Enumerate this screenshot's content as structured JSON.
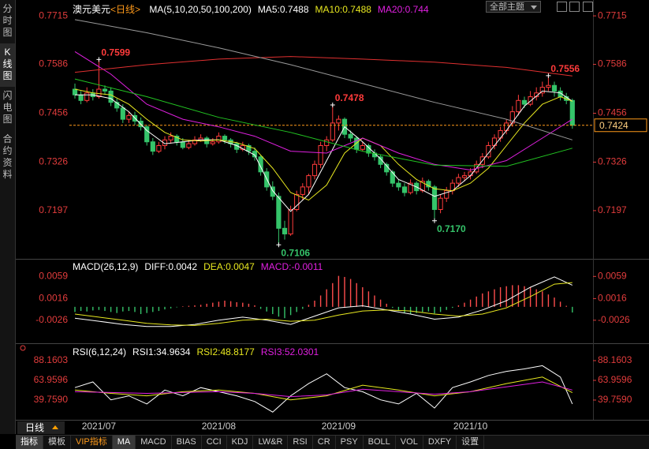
{
  "header": {
    "symbol": "澳元美元",
    "period": "<日线>",
    "theme": "全部主题"
  },
  "sidebar": [
    "分时图",
    "K线图",
    "闪电图",
    "合约资料"
  ],
  "tabs": {
    "period": "日线",
    "items": [
      "指标",
      "模板",
      "VIP指标",
      "MA",
      "MACD",
      "BIAS",
      "CCI",
      "KDJ",
      "LW&R",
      "RSI",
      "CR",
      "PSY",
      "BOLL",
      "VOL",
      "DXFY",
      "设置"
    ]
  },
  "chart_data": [
    {
      "type": "candlestick",
      "title": "MA(5,10,20,50,100,200)",
      "xlim": [
        -1,
        84
      ],
      "ylim": [
        0.7073,
        0.7732
      ],
      "yticks": [
        0.7715,
        0.7586,
        0.7456,
        0.7326,
        0.7197
      ],
      "xticks": [
        {
          "value": 4,
          "label": "2021/07"
        },
        {
          "value": 24,
          "label": "2021/08"
        },
        {
          "value": 44,
          "label": "2021/09"
        },
        {
          "value": 66,
          "label": "2021/10"
        }
      ],
      "axis_color": "#e23c3c",
      "up_color": "#ff3b3b",
      "down_color": "#35c46a",
      "last_price": 0.7424,
      "last_price_color": "#ff9a1a",
      "open": [
        0.752,
        0.7505,
        0.749,
        0.751,
        0.75,
        0.752,
        0.7515,
        0.7485,
        0.747,
        0.744,
        0.745,
        0.7435,
        0.742,
        0.738,
        0.7355,
        0.737,
        0.7385,
        0.7395,
        0.738,
        0.7365,
        0.7375,
        0.7385,
        0.739,
        0.7375,
        0.738,
        0.7395,
        0.7385,
        0.7375,
        0.736,
        0.737,
        0.7355,
        0.734,
        0.73,
        0.726,
        0.7235,
        0.715,
        0.7135,
        0.72,
        0.724,
        0.726,
        0.729,
        0.732,
        0.737,
        0.7385,
        0.743,
        0.744,
        0.74,
        0.739,
        0.736,
        0.737,
        0.735,
        0.734,
        0.732,
        0.73,
        0.727,
        0.726,
        0.7245,
        0.727,
        0.725,
        0.7275,
        0.726,
        0.72,
        0.723,
        0.725,
        0.727,
        0.7285,
        0.729,
        0.73,
        0.732,
        0.734,
        0.737,
        0.739,
        0.741,
        0.743,
        0.746,
        0.749,
        0.748,
        0.75,
        0.751,
        0.7525,
        0.753,
        0.7515,
        0.75,
        0.749
      ],
      "high": [
        0.7535,
        0.7515,
        0.7525,
        0.752,
        0.7599,
        0.753,
        0.7525,
        0.7495,
        0.748,
        0.746,
        0.746,
        0.7445,
        0.7425,
        0.739,
        0.738,
        0.7395,
        0.7405,
        0.74,
        0.739,
        0.7385,
        0.7395,
        0.74,
        0.7395,
        0.739,
        0.7405,
        0.74,
        0.739,
        0.738,
        0.738,
        0.7375,
        0.7365,
        0.7345,
        0.731,
        0.7275,
        0.7245,
        0.717,
        0.721,
        0.725,
        0.727,
        0.7295,
        0.733,
        0.738,
        0.7395,
        0.7478,
        0.745,
        0.7445,
        0.741,
        0.7395,
        0.738,
        0.7375,
        0.736,
        0.7345,
        0.7325,
        0.7305,
        0.728,
        0.727,
        0.728,
        0.7275,
        0.7285,
        0.728,
        0.7265,
        0.724,
        0.726,
        0.728,
        0.7295,
        0.73,
        0.731,
        0.733,
        0.735,
        0.738,
        0.74,
        0.742,
        0.744,
        0.7475,
        0.7505,
        0.75,
        0.7515,
        0.7525,
        0.754,
        0.7556,
        0.754,
        0.7525,
        0.751,
        0.7495
      ],
      "low": [
        0.7495,
        0.748,
        0.7485,
        0.749,
        0.7495,
        0.7505,
        0.7475,
        0.746,
        0.743,
        0.743,
        0.7425,
        0.741,
        0.737,
        0.7345,
        0.735,
        0.736,
        0.7375,
        0.737,
        0.736,
        0.736,
        0.737,
        0.738,
        0.7365,
        0.737,
        0.7375,
        0.7375,
        0.7365,
        0.735,
        0.7355,
        0.7345,
        0.733,
        0.729,
        0.725,
        0.7225,
        0.7106,
        0.712,
        0.713,
        0.7195,
        0.7225,
        0.724,
        0.728,
        0.731,
        0.7355,
        0.738,
        0.741,
        0.739,
        0.738,
        0.735,
        0.7355,
        0.734,
        0.733,
        0.731,
        0.729,
        0.726,
        0.725,
        0.7235,
        0.724,
        0.724,
        0.7245,
        0.725,
        0.717,
        0.719,
        0.722,
        0.724,
        0.726,
        0.7275,
        0.728,
        0.7295,
        0.731,
        0.7335,
        0.736,
        0.738,
        0.74,
        0.742,
        0.745,
        0.747,
        0.7475,
        0.749,
        0.75,
        0.7515,
        0.75,
        0.749,
        0.748,
        0.7415
      ],
      "close": [
        0.7505,
        0.749,
        0.751,
        0.75,
        0.752,
        0.7515,
        0.7485,
        0.747,
        0.744,
        0.745,
        0.7435,
        0.742,
        0.738,
        0.7355,
        0.737,
        0.7385,
        0.7395,
        0.738,
        0.7365,
        0.7375,
        0.7385,
        0.739,
        0.7375,
        0.738,
        0.7395,
        0.7385,
        0.7375,
        0.736,
        0.737,
        0.7355,
        0.734,
        0.73,
        0.726,
        0.7235,
        0.715,
        0.7135,
        0.72,
        0.724,
        0.726,
        0.729,
        0.732,
        0.737,
        0.7385,
        0.743,
        0.744,
        0.74,
        0.739,
        0.736,
        0.737,
        0.735,
        0.734,
        0.732,
        0.73,
        0.727,
        0.726,
        0.7245,
        0.727,
        0.725,
        0.7275,
        0.726,
        0.72,
        0.723,
        0.725,
        0.727,
        0.7285,
        0.729,
        0.73,
        0.732,
        0.734,
        0.737,
        0.739,
        0.741,
        0.743,
        0.746,
        0.749,
        0.748,
        0.75,
        0.751,
        0.7525,
        0.753,
        0.7515,
        0.75,
        0.749,
        0.7424
      ],
      "annotations": [
        {
          "label": "0.7599",
          "value": 0.7599,
          "candle": 4
        },
        {
          "label": "0.7478",
          "value": 0.7478,
          "candle": 43
        },
        {
          "label": "0.7556",
          "value": 0.7556,
          "candle": 79
        },
        {
          "label": "0.7106",
          "value": 0.7106,
          "candle": 34
        },
        {
          "label": "0.7170",
          "value": 0.717,
          "candle": 60
        }
      ],
      "series": [
        {
          "name": "MA5:0.7488",
          "color": "#ffffff",
          "x": [
            0,
            3,
            6,
            9,
            12,
            15,
            18,
            21,
            24,
            27,
            30,
            33,
            36,
            39,
            42,
            45,
            48,
            51,
            54,
            57,
            60,
            63,
            66,
            69,
            72,
            75,
            78,
            81,
            83
          ],
          "values": [
            0.7505,
            0.7505,
            0.7495,
            0.746,
            0.741,
            0.7375,
            0.738,
            0.7385,
            0.7385,
            0.737,
            0.7345,
            0.725,
            0.7195,
            0.724,
            0.733,
            0.742,
            0.738,
            0.7335,
            0.728,
            0.726,
            0.7235,
            0.725,
            0.729,
            0.735,
            0.741,
            0.7475,
            0.7515,
            0.751,
            0.7488
          ]
        },
        {
          "name": "MA10:0.7488",
          "color": "#e8e820",
          "x": [
            0,
            3,
            6,
            9,
            12,
            15,
            18,
            21,
            24,
            27,
            30,
            33,
            36,
            39,
            42,
            45,
            48,
            51,
            54,
            57,
            60,
            63,
            66,
            69,
            72,
            75,
            78,
            81,
            83
          ],
          "values": [
            0.752,
            0.751,
            0.7505,
            0.748,
            0.744,
            0.7405,
            0.7385,
            0.7382,
            0.7385,
            0.7378,
            0.7362,
            0.731,
            0.7245,
            0.7225,
            0.7265,
            0.735,
            0.739,
            0.737,
            0.732,
            0.728,
            0.7255,
            0.725,
            0.727,
            0.731,
            0.737,
            0.743,
            0.748,
            0.75,
            0.7488
          ]
        },
        {
          "name": "MA20:0.744",
          "color": "#e020e0",
          "x": [
            0,
            6,
            12,
            18,
            24,
            30,
            36,
            42,
            48,
            54,
            60,
            66,
            72,
            78,
            83
          ],
          "values": [
            0.762,
            0.756,
            0.748,
            0.744,
            0.742,
            0.7395,
            0.7355,
            0.735,
            0.739,
            0.735,
            0.732,
            0.7305,
            0.733,
            0.739,
            0.744
          ]
        },
        {
          "color": "#22c422",
          "x": [
            0,
            12,
            24,
            36,
            48,
            60,
            72,
            83
          ],
          "values": [
            0.7547,
            0.75,
            0.7445,
            0.7405,
            0.7355,
            0.7318,
            0.7315,
            0.7363
          ]
        },
        {
          "color": "#e03030",
          "x": [
            0,
            12,
            24,
            36,
            48,
            60,
            72,
            83
          ],
          "values": [
            0.7565,
            0.7585,
            0.76,
            0.7607,
            0.76,
            0.7592,
            0.7578,
            0.7555
          ]
        },
        {
          "color": "#9a9a9a",
          "x": [
            0,
            12,
            24,
            36,
            48,
            60,
            72,
            83
          ],
          "values": [
            0.7705,
            0.767,
            0.763,
            0.7585,
            0.7535,
            0.7485,
            0.744,
            0.7385
          ]
        }
      ]
    },
    {
      "type": "macd",
      "title": "MACD(26,12,9)",
      "xlim": [
        -1,
        84
      ],
      "ylim": [
        -0.0063,
        0.0087
      ],
      "yticks": [
        0.0059,
        0.0016,
        -0.0026
      ],
      "axis_color": "#e23c3c",
      "up_color": "#ff4d4d",
      "down_color": "#35c46a",
      "histogram_name": "MACD:-0.0011",
      "histogram_legend_color": "#e020e0",
      "histogram": [
        -0.001,
        -0.0008,
        -0.0009,
        -0.0007,
        -0.0006,
        -0.0008,
        -0.001,
        -0.0012,
        -0.0009,
        -0.0008,
        -0.001,
        -0.0014,
        -0.0012,
        -0.001,
        -0.0008,
        -0.0005,
        -0.0003,
        -0.0001,
        0.0001,
        0.0002,
        0.0003,
        0.0004,
        0.0006,
        0.0008,
        0.001,
        0.0012,
        0.0011,
        0.0009,
        0.0008,
        0.0006,
        0.0003,
        -0.0004,
        -0.0009,
        -0.0014,
        -0.0019,
        -0.0022,
        -0.0016,
        -0.001,
        -0.0004,
        0.0004,
        0.0012,
        0.0022,
        0.0034,
        0.0046,
        0.006,
        0.0058,
        0.0054,
        0.0046,
        0.0038,
        0.003,
        0.0022,
        0.0014,
        0.0006,
        -0.0002,
        -0.0008,
        -0.0012,
        -0.0014,
        -0.0012,
        -0.001,
        -0.0009,
        -0.0013,
        -0.001,
        -0.0006,
        -0.0002,
        0.0003,
        0.0008,
        0.0014,
        0.002,
        0.0026,
        0.003,
        0.0034,
        0.0038,
        0.004,
        0.0042,
        0.0042,
        0.004,
        0.0038,
        0.0034,
        0.003,
        0.0024,
        0.0018,
        0.001,
        0.0002,
        -0.0011
      ],
      "series": [
        {
          "name": "DIFF:0.0042",
          "color": "#ffffff",
          "x": [
            0,
            4,
            8,
            12,
            16,
            20,
            24,
            28,
            32,
            36,
            40,
            44,
            48,
            52,
            56,
            60,
            64,
            68,
            72,
            76,
            80,
            83
          ],
          "values": [
            -0.0022,
            -0.0028,
            -0.0034,
            -0.0038,
            -0.0038,
            -0.0034,
            -0.0026,
            -0.002,
            -0.0026,
            -0.0034,
            -0.0018,
            -0.0002,
            0.0002,
            -0.0006,
            -0.0014,
            -0.0024,
            -0.002,
            -0.0006,
            0.0012,
            0.0038,
            0.0058,
            0.0042
          ]
        },
        {
          "name": "DEA:0.0047",
          "color": "#e8e820",
          "x": [
            0,
            4,
            8,
            12,
            16,
            20,
            24,
            28,
            32,
            36,
            40,
            44,
            48,
            52,
            56,
            60,
            64,
            68,
            72,
            76,
            80,
            83
          ],
          "values": [
            -0.0014,
            -0.002,
            -0.0026,
            -0.0032,
            -0.0035,
            -0.0036,
            -0.0032,
            -0.0026,
            -0.0024,
            -0.0028,
            -0.0026,
            -0.0016,
            -0.0008,
            -0.0006,
            -0.0008,
            -0.0014,
            -0.0018,
            -0.0014,
            -0.0002,
            0.002,
            0.0044,
            0.0047
          ]
        }
      ]
    },
    {
      "type": "rsi",
      "title": "RSI(6,12,24)",
      "xlim": [
        -1,
        84
      ],
      "ylim": [
        19.4,
        102.7
      ],
      "yticks": [
        88.1603,
        63.9596,
        {
          "value": 39.759,
          "label": "39.7590"
        }
      ],
      "axis_color": "#e23c3c",
      "series": [
        {
          "name": "RSI1:34.9634",
          "color": "#ffffff",
          "x": [
            0,
            3,
            6,
            9,
            12,
            15,
            18,
            21,
            24,
            27,
            30,
            33,
            36,
            39,
            42,
            45,
            48,
            51,
            54,
            57,
            60,
            63,
            66,
            69,
            72,
            75,
            78,
            81,
            83
          ],
          "values": [
            55,
            62,
            40,
            45,
            35,
            52,
            45,
            55,
            50,
            45,
            38,
            25,
            45,
            60,
            72,
            55,
            50,
            40,
            35,
            48,
            30,
            55,
            62,
            70,
            75,
            78,
            82,
            68,
            34.9634
          ]
        },
        {
          "name": "RSI2:48.8177",
          "color": "#e8e820",
          "x": [
            0,
            6,
            12,
            18,
            24,
            30,
            36,
            42,
            48,
            54,
            60,
            66,
            72,
            78,
            83
          ],
          "values": [
            52,
            48,
            45,
            50,
            52,
            48,
            40,
            45,
            58,
            52,
            45,
            50,
            60,
            68,
            48.8177
          ]
        },
        {
          "name": "RSI3:52.0301",
          "color": "#e020e0",
          "x": [
            0,
            6,
            12,
            18,
            24,
            30,
            36,
            42,
            48,
            54,
            60,
            66,
            72,
            78,
            83
          ],
          "values": [
            50,
            49,
            48,
            49,
            50,
            48,
            44,
            46,
            53,
            50,
            47,
            50,
            56,
            62,
            52.0301
          ]
        }
      ]
    }
  ]
}
